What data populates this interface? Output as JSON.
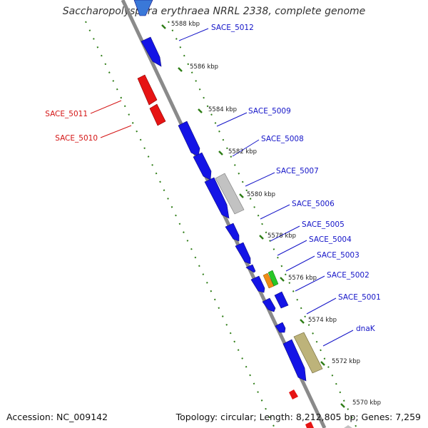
{
  "title": "Saccharopolyspora erythraea NRRL 2338, complete genome",
  "accession": "Accession: NC_009142",
  "topology": "Topology: circular; Length: 8,212,805 bp; Genes: 7,259",
  "colors": {
    "backbone": "#8a8a8a",
    "dotted_track": "#2e7d16",
    "forward_gene": "#1414e6",
    "reverse_gene": "#e61414",
    "pseudo_gene": "#c2c2c2",
    "chaperone_gene": "#bdb37a",
    "orange_gene": "#f08c14",
    "green_gene": "#28c828",
    "label_blue": "#1414c8",
    "label_red": "#d41414"
  },
  "ticks": [
    {
      "label": "5588 kbp"
    },
    {
      "label": "5586 kbp"
    },
    {
      "label": "5584 kbp"
    },
    {
      "label": "5582 kbp"
    },
    {
      "label": "5580 kbp"
    },
    {
      "label": "5578 kbp"
    },
    {
      "label": "5576 kbp"
    },
    {
      "label": "5574 kbp"
    },
    {
      "label": "5572 kbp"
    },
    {
      "label": "5570 kbp"
    }
  ],
  "gene_labels": [
    {
      "name": "SACE_5012",
      "strand": "forward"
    },
    {
      "name": "SACE_5011",
      "strand": "reverse"
    },
    {
      "name": "SACE_5010",
      "strand": "reverse"
    },
    {
      "name": "SACE_5009",
      "strand": "forward"
    },
    {
      "name": "SACE_5008",
      "strand": "forward"
    },
    {
      "name": "SACE_5007",
      "strand": "forward"
    },
    {
      "name": "SACE_5006",
      "strand": "forward"
    },
    {
      "name": "SACE_5005",
      "strand": "forward"
    },
    {
      "name": "SACE_5004",
      "strand": "forward"
    },
    {
      "name": "SACE_5003",
      "strand": "forward"
    },
    {
      "name": "SACE_5002",
      "strand": "forward"
    },
    {
      "name": "SACE_5001",
      "strand": "forward"
    },
    {
      "name": "dnaK",
      "strand": "forward"
    }
  ]
}
